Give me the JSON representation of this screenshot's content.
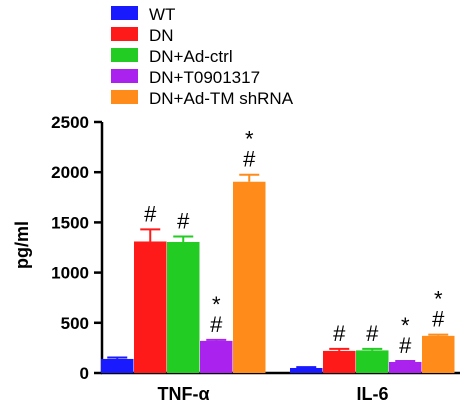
{
  "chart_data": {
    "type": "bar",
    "ylabel": "pg/ml",
    "ylim": [
      0,
      2500
    ],
    "yticks": [
      0,
      500,
      1000,
      1500,
      2000,
      2500
    ],
    "categories": [
      "TNF-α",
      "IL-6"
    ],
    "series": [
      {
        "name": "WT",
        "color": "#1a1aff",
        "values": [
          140,
          50
        ],
        "errors": [
          15,
          8
        ],
        "annotations": [
          "",
          ""
        ]
      },
      {
        "name": "DN",
        "color": "#ff1a1a",
        "values": [
          1310,
          220
        ],
        "errors": [
          120,
          20
        ],
        "annotations": [
          "#",
          "#"
        ]
      },
      {
        "name": "DN+Ad-ctrl",
        "color": "#22cc22",
        "values": [
          1305,
          225
        ],
        "errors": [
          55,
          15
        ],
        "annotations": [
          "#",
          "#"
        ]
      },
      {
        "name": "DN+T0901317",
        "color": "#aa22ee",
        "values": [
          320,
          110
        ],
        "errors": [
          10,
          10
        ],
        "annotations": [
          "*\n#",
          "*\n#"
        ]
      },
      {
        "name": "DN+Ad-TM shRNA",
        "color": "#ff8c1a",
        "values": [
          1905,
          370
        ],
        "errors": [
          70,
          12
        ],
        "annotations": [
          "*\n#",
          "*\n#"
        ]
      }
    ],
    "legend": "top-left",
    "grid": false
  }
}
